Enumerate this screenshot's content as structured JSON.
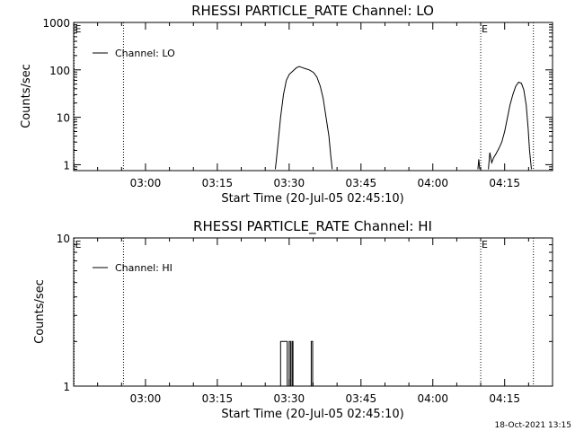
{
  "footer": {
    "timestamp": "18-Oct-2021 13:15"
  },
  "chart_data": [
    {
      "type": "line",
      "title": "RHESSI PARTICLE_RATE Channel: LO",
      "xlabel": "Start Time (20-Jul-05 02:45:10)",
      "ylabel": "Counts/sec",
      "yscale": "log",
      "ylim": [
        0.75,
        1000
      ],
      "xlim": [
        "02:45:10",
        "04:25:00"
      ],
      "xrange_min": [
        0,
        100
      ],
      "x_tick_labels": [
        "03:00",
        "03:15",
        "03:30",
        "03:45",
        "04:00",
        "04:15"
      ],
      "x_tick_minutes": [
        15,
        30,
        45,
        60,
        75,
        90
      ],
      "y_tick_labels": [
        "1",
        "10",
        "100",
        "1000"
      ],
      "y_tick_values": [
        1,
        10,
        100,
        1000
      ],
      "legend": {
        "label": "Channel: LO",
        "position": "top-left"
      },
      "markers": [
        {
          "minute": 0.1,
          "label": "E"
        },
        {
          "minute": 10.4,
          "label": ""
        },
        {
          "minute": 85.0,
          "label": "E"
        },
        {
          "minute": 96.0,
          "label": ""
        }
      ],
      "series": [
        {
          "name": "Channel: LO",
          "segments": [
            [
              [
                42.1,
                0.8
              ],
              [
                42.3,
                1.2
              ],
              [
                42.7,
                3
              ],
              [
                43.2,
                10
              ],
              [
                43.8,
                30
              ],
              [
                44.4,
                60
              ],
              [
                45,
                80
              ],
              [
                45.8,
                95
              ],
              [
                46.5,
                110
              ],
              [
                47.1,
                118
              ],
              [
                47.7,
                112
              ],
              [
                48.4,
                106
              ],
              [
                49.2,
                100
              ],
              [
                50.1,
                88
              ],
              [
                50.8,
                70
              ],
              [
                51.5,
                45
              ],
              [
                52.1,
                25
              ],
              [
                52.7,
                10
              ],
              [
                53.3,
                4
              ],
              [
                53.7,
                1.5
              ],
              [
                54.0,
                0.8
              ]
            ],
            [
              [
                84.4,
                0.8
              ],
              [
                84.6,
                1.3
              ],
              [
                84.8,
                0.8
              ]
            ],
            [
              [
                86.6,
                0.8
              ],
              [
                86.9,
                1.8
              ],
              [
                87.3,
                1.1
              ],
              [
                87.7,
                1.4
              ],
              [
                88.2,
                1.7
              ],
              [
                88.8,
                2.2
              ],
              [
                89.4,
                3
              ],
              [
                90.0,
                5
              ],
              [
                90.6,
                10
              ],
              [
                91.1,
                18
              ],
              [
                91.7,
                30
              ],
              [
                92.3,
                45
              ],
              [
                92.9,
                55
              ],
              [
                93.5,
                52
              ],
              [
                94.0,
                38
              ],
              [
                94.5,
                18
              ],
              [
                94.9,
                6
              ],
              [
                95.2,
                2
              ],
              [
                95.6,
                0.8
              ]
            ]
          ]
        }
      ]
    },
    {
      "type": "line",
      "title": "RHESSI PARTICLE_RATE Channel: HI",
      "xlabel": "Start Time (20-Jul-05 02:45:10)",
      "ylabel": "Counts/sec",
      "yscale": "log",
      "ylim": [
        1,
        10
      ],
      "xlim": [
        "02:45:10",
        "04:25:00"
      ],
      "xrange_min": [
        0,
        100
      ],
      "x_tick_labels": [
        "03:00",
        "03:15",
        "03:30",
        "03:45",
        "04:00",
        "04:15"
      ],
      "x_tick_minutes": [
        15,
        30,
        45,
        60,
        75,
        90
      ],
      "y_tick_labels": [
        "1",
        "10"
      ],
      "y_tick_values": [
        1,
        10
      ],
      "legend": {
        "label": "Channel: HI",
        "position": "top-left"
      },
      "markers": [
        {
          "minute": 0.1,
          "label": "E"
        },
        {
          "minute": 10.4,
          "label": ""
        },
        {
          "minute": 85.0,
          "label": "E"
        },
        {
          "minute": 96.0,
          "label": ""
        }
      ],
      "series": [
        {
          "name": "Channel: HI",
          "segments": [
            [
              [
                43.2,
                1
              ],
              [
                43.2,
                2
              ],
              [
                44.6,
                2
              ],
              [
                44.6,
                1
              ],
              [
                45.0,
                1
              ],
              [
                45.0,
                2
              ],
              [
                45.3,
                2
              ],
              [
                45.3,
                1
              ],
              [
                45.6,
                1
              ],
              [
                45.6,
                2
              ],
              [
                45.8,
                2
              ],
              [
                45.8,
                1
              ]
            ],
            [
              [
                49.6,
                1
              ],
              [
                49.6,
                2
              ],
              [
                49.9,
                2
              ],
              [
                49.9,
                1
              ]
            ]
          ]
        }
      ]
    }
  ]
}
